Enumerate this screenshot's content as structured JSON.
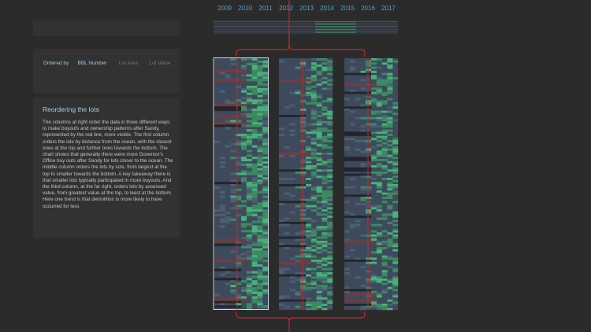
{
  "timeline": {
    "years": [
      "2009",
      "2010",
      "2011",
      "2012",
      "2013",
      "2014",
      "2015",
      "2016",
      "2017"
    ]
  },
  "ordering": {
    "options": [
      {
        "label": "Ordered by",
        "state": "active"
      },
      {
        "label": "BBL Number",
        "state": "active"
      },
      {
        "label": "Lot Area",
        "state": "inactive"
      },
      {
        "label": "Lot Value",
        "state": "inactive"
      }
    ]
  },
  "story": {
    "title": "Reordering the lots",
    "body": "The columns at right order the data in three different ways to make buyouts and ownership patterns after Sandy, represented by the red line, more visible. The first column orders the lots by distance from the ocean, with the closest ones at the top and further ones towards the bottom. The chart shows that generally there were more Governor's Office buy outs after Sandy for lots closer to the ocean. The middle column orders the lots by size, from largest at the top to smaller towards the bottom. A key takeaway there is that smaller lots typically participated in more buyouts. And the third column, at the far right, orders lots by assessed value, from greatest value at the top, to least at the bottom. Here one trend is that demolition is more likely to have occurred for less"
  },
  "colors": {
    "background": "#2b2b2b",
    "panel": "#323232",
    "accent": "#4aa3c8",
    "sandy_line": "#c8272d",
    "cell_base": "#3e4a5c",
    "cell_green": "#3d8a62",
    "cell_bright_green": "#46b27a",
    "cell_dark": "#22262c",
    "cell_red": "#7a3a3a",
    "selection": "#c9d6e2"
  }
}
